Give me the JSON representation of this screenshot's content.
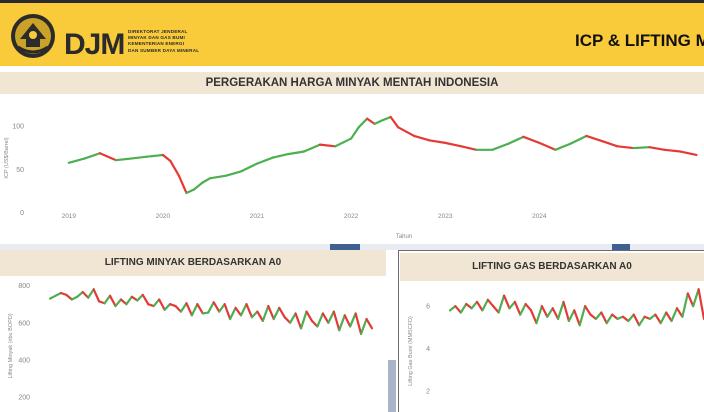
{
  "header": {
    "title": "ICP & LIFTING M",
    "wordmark": "DJM",
    "org_lines": [
      "DIREKTORAT JENDERAL",
      "MINYAK DAN GAS BUMI",
      "KEMENTERIAN ENERGI",
      "DAN SUMBER DAYA MINERAL"
    ],
    "brand_color": "#f9cb3b"
  },
  "icp_panel": {
    "title": "PERGERAKAN HARGA MINYAK MENTAH INDONESIA"
  },
  "oil_panel": {
    "title": "LIFTING MINYAK BERDASARKAN A0"
  },
  "gas_panel": {
    "title": "LIFTING GAS BERDASARKAN A0"
  },
  "colors": {
    "up": "#4caf50",
    "down": "#e53935",
    "axis_text": "#888888",
    "panel_title_bg": "#f0e6d3"
  },
  "chart_data": [
    {
      "type": "line",
      "title": "PERGERAKAN HARGA MINYAK MENTAH INDONESIA",
      "xlabel": "Tahun",
      "ylabel": "ICP (US$/Barrel)",
      "x_ticks": [
        "2019",
        "2020",
        "2021",
        "2022",
        "2023",
        "2024"
      ],
      "y_ticks": [
        0,
        50,
        100
      ],
      "ylim": [
        0,
        125
      ],
      "xlim": [
        2018.8,
        2025.75
      ],
      "series": [
        {
          "x": [
            2019.0,
            2019.17,
            2019.33,
            2019.5,
            2019.67,
            2019.83,
            2020.0,
            2020.08,
            2020.17,
            2020.25,
            2020.33,
            2020.42,
            2020.5,
            2020.67,
            2020.83,
            2021.0,
            2021.17,
            2021.33,
            2021.5,
            2021.67,
            2021.83,
            2022.0,
            2022.08,
            2022.17,
            2022.25,
            2022.33,
            2022.42,
            2022.5,
            2022.67,
            2022.83,
            2023.0,
            2023.17,
            2023.33,
            2023.5,
            2023.67,
            2023.83,
            2024.0,
            2024.17,
            2024.33,
            2024.5,
            2024.67,
            2024.83,
            2025.0,
            2025.17,
            2025.33,
            2025.5,
            2025.67
          ],
          "y": [
            57,
            62,
            68,
            60,
            62,
            64,
            66,
            59,
            42,
            22,
            26,
            34,
            39,
            42,
            47,
            56,
            63,
            67,
            70,
            78,
            76,
            85,
            98,
            108,
            102,
            106,
            110,
            98,
            88,
            83,
            80,
            76,
            72,
            72,
            79,
            87,
            80,
            72,
            79,
            88,
            82,
            76,
            74,
            75,
            72,
            70,
            66
          ]
        }
      ]
    },
    {
      "type": "line",
      "title": "LIFTING MINYAK BERDASARKAN A0",
      "xlabel": "",
      "ylabel": "Lifting Minyak (ribu BOPD)",
      "y_ticks": [
        200,
        400,
        600,
        800
      ],
      "ylim": [
        120,
        830
      ],
      "series": [
        {
          "y": [
            730,
            745,
            760,
            750,
            725,
            740,
            765,
            735,
            780,
            715,
            705,
            745,
            690,
            725,
            700,
            740,
            720,
            750,
            700,
            690,
            725,
            670,
            700,
            690,
            660,
            705,
            640,
            700,
            650,
            655,
            710,
            660,
            700,
            620,
            680,
            640,
            700,
            630,
            660,
            610,
            690,
            620,
            680,
            630,
            600,
            650,
            570,
            660,
            610,
            580,
            650,
            600,
            660,
            560,
            640,
            580,
            650,
            540,
            620,
            570
          ]
        }
      ]
    },
    {
      "type": "line",
      "title": "LIFTING GAS BERDASARKAN A0",
      "xlabel": "",
      "ylabel": "Lifting Gas Bumi (MMSCFD)",
      "y_ticks": [
        2,
        4,
        6
      ],
      "ylim": [
        1,
        7
      ],
      "series": [
        {
          "y": [
            5.8,
            6.0,
            5.7,
            6.1,
            5.9,
            6.2,
            5.8,
            6.3,
            6.0,
            5.7,
            6.5,
            5.9,
            6.2,
            5.6,
            6.1,
            5.8,
            5.2,
            6.0,
            5.5,
            5.9,
            5.4,
            6.2,
            5.3,
            5.8,
            5.1,
            6.0,
            5.6,
            5.4,
            5.7,
            5.2,
            5.6,
            5.4,
            5.5,
            5.3,
            5.6,
            5.1,
            5.5,
            5.4,
            5.6,
            5.2,
            5.7,
            5.3,
            5.9,
            5.5,
            6.6,
            6.0,
            6.8,
            5.4
          ]
        }
      ]
    }
  ]
}
